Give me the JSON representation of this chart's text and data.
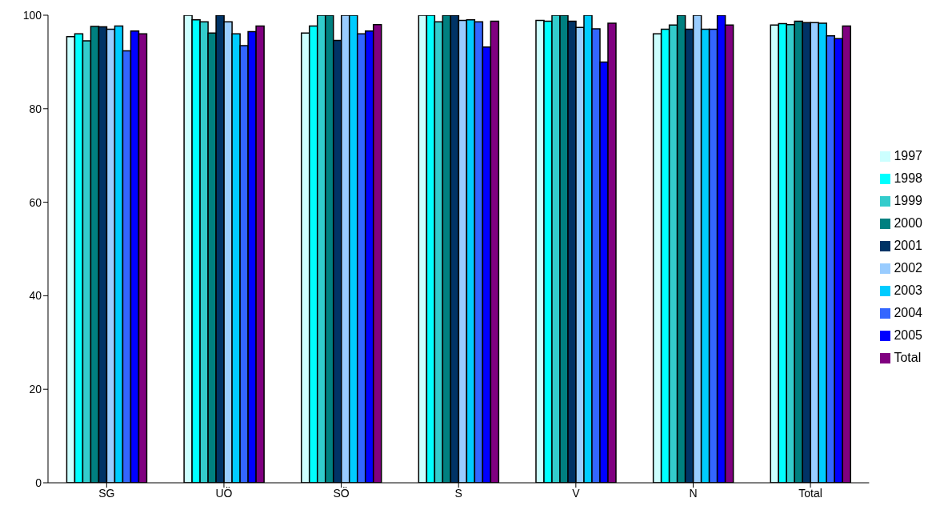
{
  "chart_data": {
    "type": "bar",
    "categories": [
      "SG",
      "UÖ",
      "SÖ",
      "S",
      "V",
      "N",
      "Total"
    ],
    "series": [
      {
        "name": "1997",
        "color": "#ccffff",
        "values": [
          95.4,
          100,
          96.2,
          100,
          98.9,
          96,
          97.9
        ]
      },
      {
        "name": "1998",
        "color": "#00ffff",
        "values": [
          96,
          99,
          97.7,
          100,
          98.7,
          97,
          98.2
        ]
      },
      {
        "name": "1999",
        "color": "#33cccc",
        "values": [
          94.5,
          98.6,
          100,
          98.6,
          100,
          97.9,
          98
        ]
      },
      {
        "name": "2000",
        "color": "#008080",
        "values": [
          97.6,
          96.2,
          100,
          100,
          100,
          100,
          98.7
        ]
      },
      {
        "name": "2001",
        "color": "#003366",
        "values": [
          97.5,
          100,
          94.6,
          100,
          98.7,
          97,
          98.4
        ]
      },
      {
        "name": "2002",
        "color": "#99ccff",
        "values": [
          97,
          98.6,
          100,
          98.9,
          97.4,
          100,
          98.4
        ]
      },
      {
        "name": "2003",
        "color": "#00ccff",
        "values": [
          97.7,
          96,
          100,
          99,
          100,
          97,
          98.3
        ]
      },
      {
        "name": "2004",
        "color": "#3366ff",
        "values": [
          92.4,
          93.5,
          96,
          98.6,
          97.1,
          97,
          95.6
        ]
      },
      {
        "name": "2005",
        "color": "#0000ff",
        "values": [
          96.6,
          96.5,
          96.6,
          93.2,
          90,
          100,
          95
        ]
      },
      {
        "name": "Total",
        "color": "#800080",
        "values": [
          96,
          97.7,
          98,
          98.7,
          98.3,
          97.9,
          97.7
        ]
      }
    ],
    "ylim": [
      0,
      100
    ],
    "yticks": [
      0,
      20,
      40,
      60,
      80,
      100
    ],
    "grid": false,
    "legend": "right"
  }
}
